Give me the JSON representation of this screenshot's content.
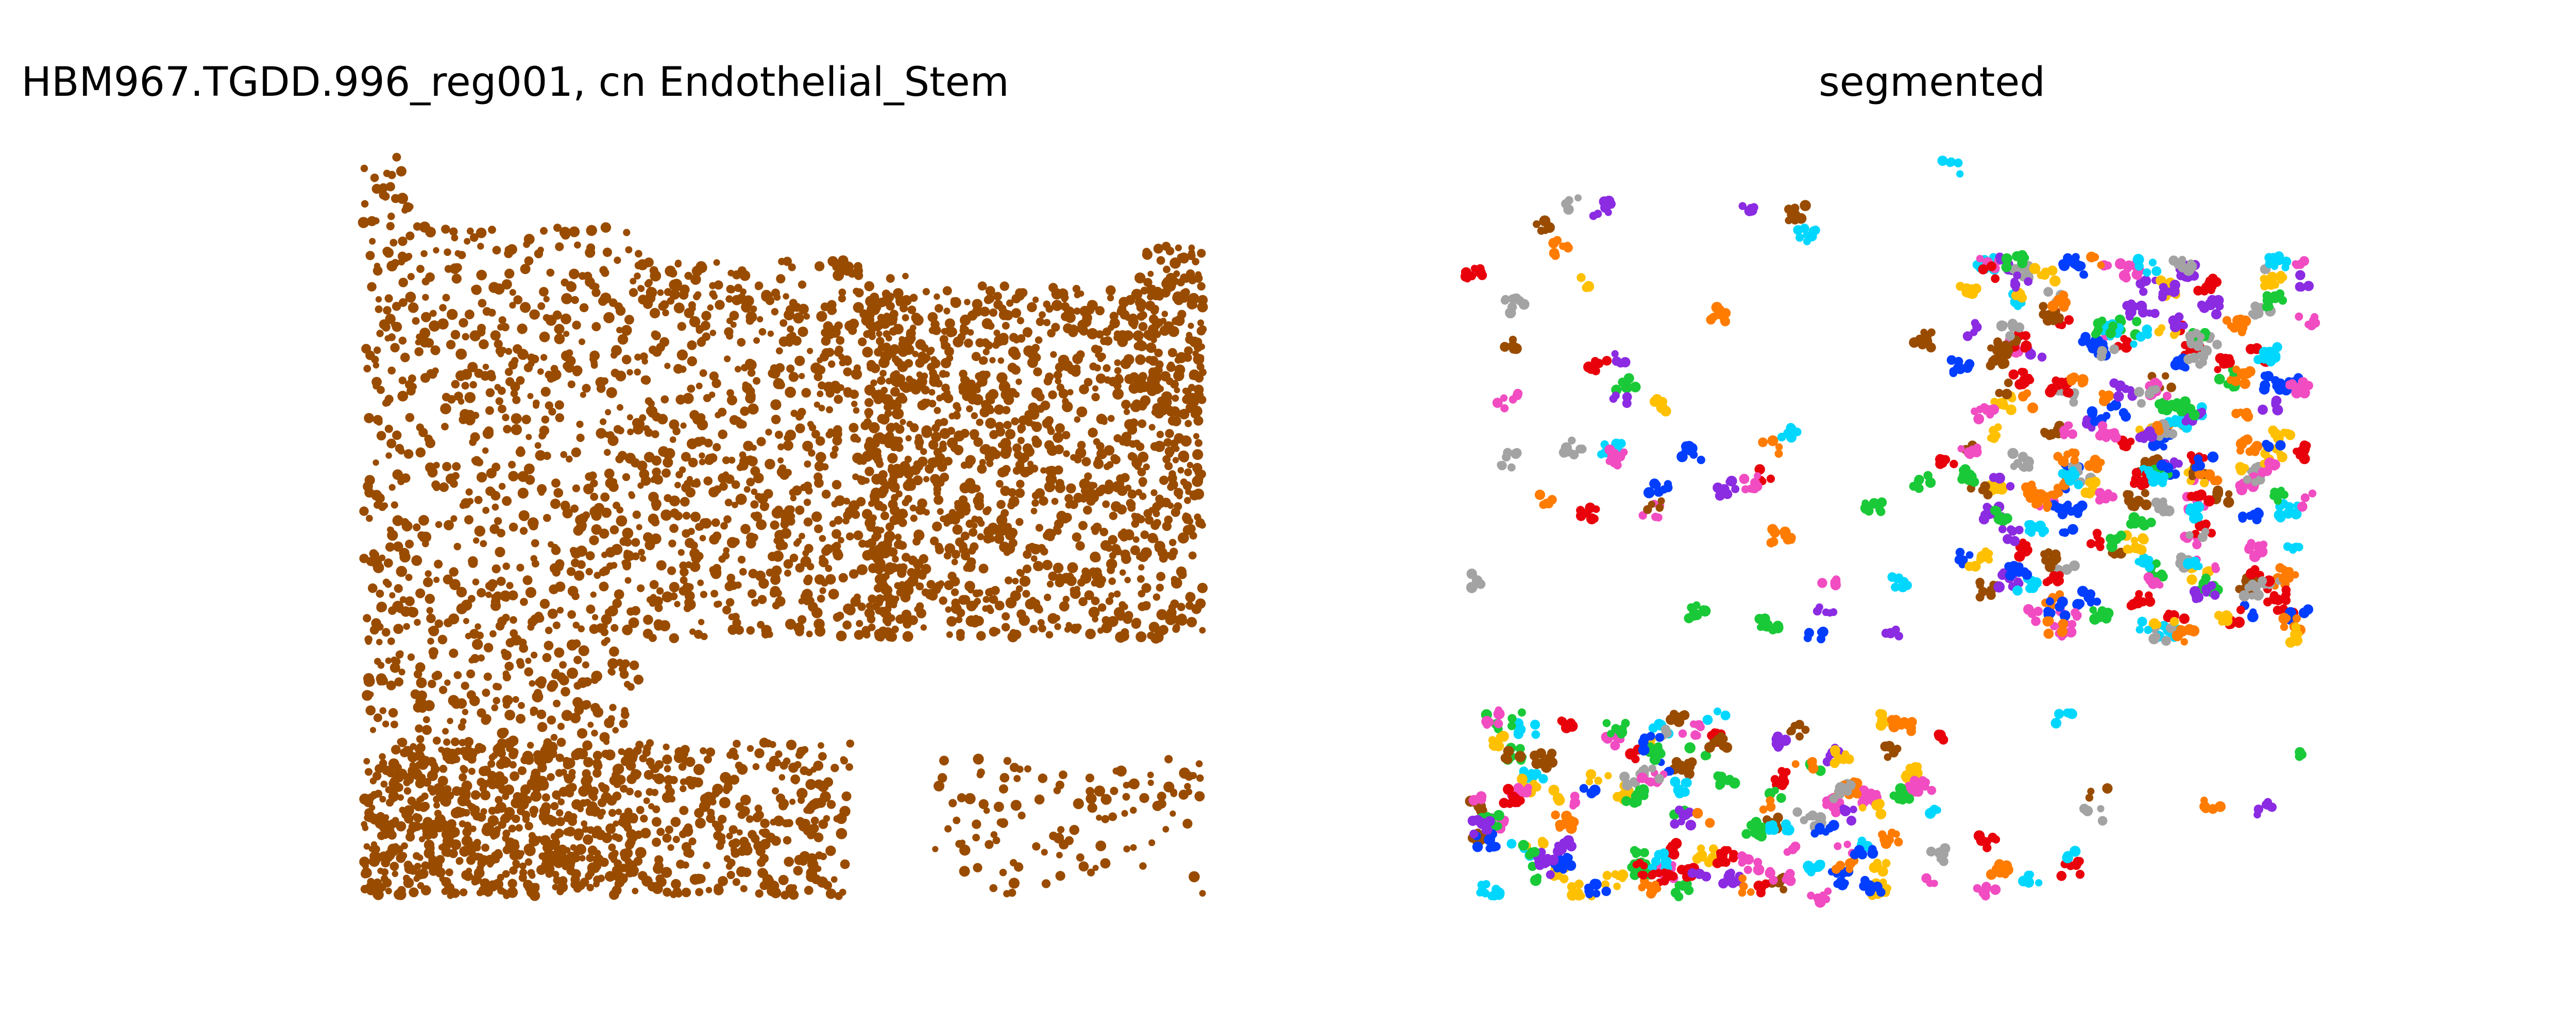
{
  "figure": {
    "left_title": "HBM967.TGDD.996_reg001, cn Endothelial_Stem",
    "right_title": "segmented"
  },
  "chart_data": [
    {
      "type": "scatter",
      "title": "HBM967.TGDD.996_reg001, cn Endothelial_Stem",
      "xlabel": "",
      "ylabel": "",
      "axes_visible": false,
      "grid": false,
      "legend": "none",
      "marker_color": "#994C00",
      "x_range": [
        0,
        1000
      ],
      "y_range": [
        0,
        860
      ],
      "point_count_estimate": 4000,
      "density_regions": [
        {
          "x": [
            0,
            60
          ],
          "y": [
            0,
            860
          ],
          "weight": 0.6
        },
        {
          "x": [
            60,
            330
          ],
          "y": [
            80,
            860
          ],
          "weight": 0.55
        },
        {
          "x": [
            330,
            650
          ],
          "y": [
            120,
            560
          ],
          "weight": 0.75
        },
        {
          "x": [
            600,
            1000
          ],
          "y": [
            150,
            560
          ],
          "weight": 1.0
        },
        {
          "x": [
            920,
            1000
          ],
          "y": [
            100,
            300
          ],
          "weight": 1.0
        },
        {
          "x": [
            0,
            580
          ],
          "y": [
            680,
            860
          ],
          "weight": 0.95
        },
        {
          "x": [
            680,
            1000
          ],
          "y": [
            700,
            860
          ],
          "weight": 0.3
        }
      ]
    },
    {
      "type": "scatter",
      "title": "segmented",
      "xlabel": "",
      "ylabel": "",
      "axes_visible": false,
      "grid": false,
      "legend": "none",
      "palette": [
        "#994C00",
        "#FFC000",
        "#E8000B",
        "#023EFF",
        "#1AC938",
        "#8B2BE2",
        "#A3A3A3",
        "#00D7FF",
        "#F14CC1",
        "#FF7C00"
      ],
      "x_range": [
        0,
        1000
      ],
      "y_range": [
        0,
        860
      ],
      "cluster_count_estimate": 420,
      "density_regions": [
        {
          "x": [
            590,
            1000
          ],
          "y": [
            120,
            560
          ],
          "weight": 1.0
        },
        {
          "x": [
            0,
            560
          ],
          "y": [
            650,
            860
          ],
          "weight": 0.9
        },
        {
          "x": [
            0,
            590
          ],
          "y": [
            0,
            560
          ],
          "weight": 0.12
        },
        {
          "x": [
            560,
            1000
          ],
          "y": [
            640,
            860
          ],
          "weight": 0.15
        }
      ]
    }
  ]
}
